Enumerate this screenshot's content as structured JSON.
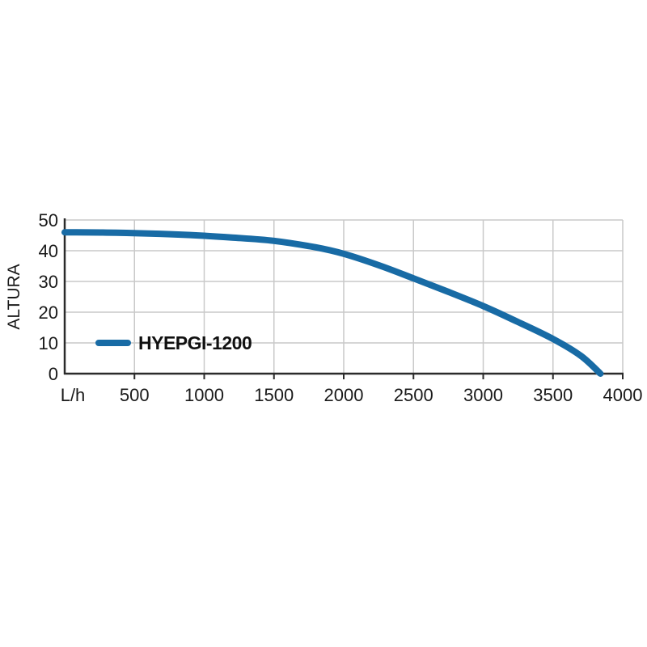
{
  "page": {
    "background": "#ffffff"
  },
  "chart_data": {
    "type": "line",
    "title": "",
    "xlabel": "L/h",
    "ylabel": "ALTURA",
    "xlim": [
      0,
      4000
    ],
    "ylim": [
      0,
      50
    ],
    "x_ticks": [
      500,
      1000,
      1500,
      2000,
      2500,
      3000,
      3500,
      4000
    ],
    "y_ticks": [
      0,
      10,
      20,
      30,
      40,
      50
    ],
    "grid": true,
    "legend_position": "inside-lower-left",
    "series": [
      {
        "name": "HYEPGI-1200",
        "color": "#186BA5",
        "points": [
          [
            0,
            46
          ],
          [
            300,
            45.9
          ],
          [
            600,
            45.6
          ],
          [
            900,
            45.1
          ],
          [
            1200,
            44.3
          ],
          [
            1500,
            43.2
          ],
          [
            1800,
            41.1
          ],
          [
            2000,
            39.0
          ],
          [
            2250,
            35.3
          ],
          [
            2500,
            31.0
          ],
          [
            2750,
            26.6
          ],
          [
            3000,
            22.0
          ],
          [
            3250,
            16.8
          ],
          [
            3500,
            11.3
          ],
          [
            3700,
            5.8
          ],
          [
            3840,
            0
          ]
        ]
      }
    ],
    "colors": {
      "grid": "#c9c9c9",
      "axis": "#2b2b2b",
      "text": "#1a1a1a"
    }
  }
}
